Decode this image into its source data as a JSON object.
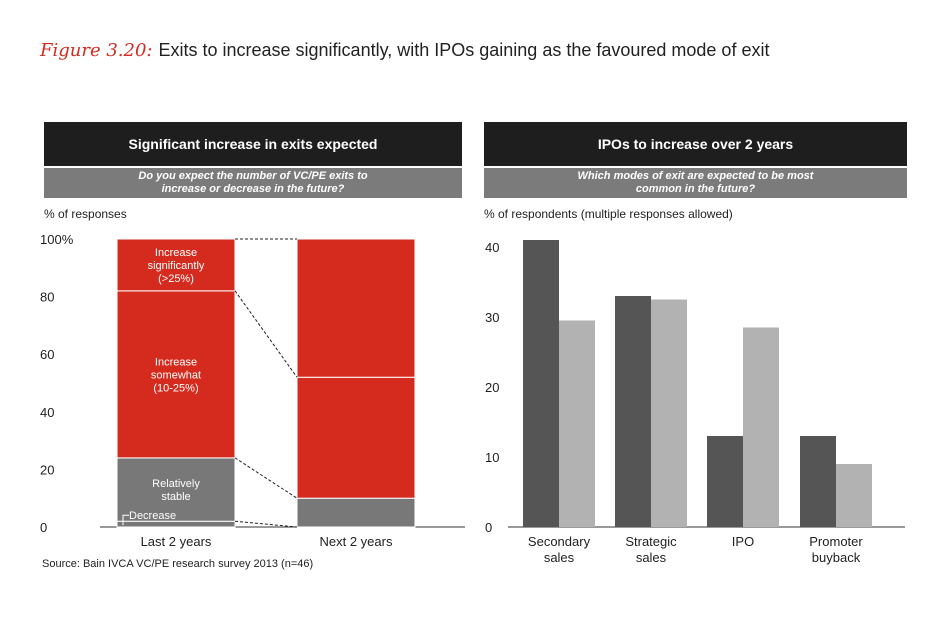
{
  "figure": {
    "label": "Figure 3.20:",
    "title": "Exits to increase significantly, with IPOs gaining as the favoured mode of exit"
  },
  "source": "Source: Bain IVCA VC/PE research survey 2013 (n=46)",
  "colors": {
    "red": "#d52b1e",
    "gray": "#787878",
    "dark_bar": "#555555",
    "light_bar": "#b2b2b2",
    "header": "#1e1e1e",
    "subheader": "#7b7b7b"
  },
  "left_panel": {
    "header": "Significant increase in exits expected",
    "subheader": "Do you expect the number of VC/PE exits to increase or decrease in the future?",
    "ylabel": "% of responses"
  },
  "right_panel": {
    "header": "IPOs to increase over 2 years",
    "subheader": "Which modes of exit are expected to be most common in the future?",
    "ylabel": "% of respondents (multiple responses allowed)"
  },
  "chart_data": [
    {
      "type": "bar",
      "stacked": true,
      "title": "Significant increase in exits expected",
      "ylabel": "% of responses",
      "ylim": [
        0,
        100
      ],
      "yticks": [
        "0",
        "20",
        "40",
        "60",
        "80",
        "100%"
      ],
      "yticks_values": [
        0,
        20,
        40,
        60,
        80,
        100
      ],
      "categories": [
        "Last 2 years",
        "Next 2 years"
      ],
      "series": [
        {
          "name": "Decrease",
          "label_lines": [
            "Decrease"
          ],
          "color": "gray",
          "values": [
            2,
            0
          ]
        },
        {
          "name": "Relatively stable",
          "label_lines": [
            "Relatively",
            "stable"
          ],
          "color": "gray",
          "values": [
            22,
            10
          ]
        },
        {
          "name": "Increase somewhat (10-25%)",
          "label_lines": [
            "Increase",
            "somewhat",
            "(10-25%)"
          ],
          "color": "red",
          "values": [
            58,
            42
          ]
        },
        {
          "name": "Increase significantly (>25%)",
          "label_lines": [
            "Increase",
            "significantly",
            "(>25%)"
          ],
          "color": "red",
          "values": [
            18,
            48
          ]
        }
      ]
    },
    {
      "type": "bar",
      "stacked": false,
      "title": "IPOs to increase over 2 years",
      "ylabel": "% of respondents (multiple responses allowed)",
      "ylim": [
        0,
        42
      ],
      "yticks": [
        "0",
        "10",
        "20",
        "30",
        "40"
      ],
      "yticks_values": [
        0,
        10,
        20,
        30,
        40
      ],
      "categories": [
        [
          "Secondary",
          "sales"
        ],
        [
          "Strategic",
          "sales"
        ],
        [
          "IPO"
        ],
        [
          "Promoter",
          "buyback"
        ]
      ],
      "series": [
        {
          "name": "Last 2 years",
          "color": "dark_bar",
          "values": [
            41,
            33,
            13,
            13
          ]
        },
        {
          "name": "Next 2 years",
          "color": "light_bar",
          "values": [
            29.5,
            32.5,
            28.5,
            9
          ]
        }
      ]
    }
  ]
}
